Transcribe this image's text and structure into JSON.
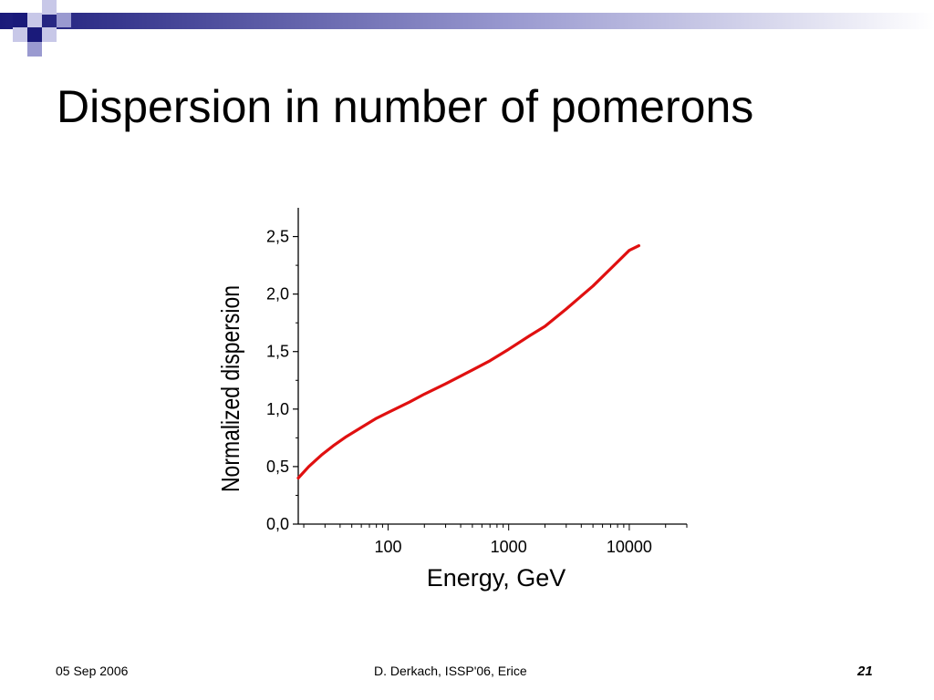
{
  "slide": {
    "title": "Dispersion in number of pomerons",
    "footer_date": "05 Sep 2006",
    "footer_center": "D. Derkach, ISSP'06, Erice",
    "page_number": "21"
  },
  "colors": {
    "curve": "#e01010",
    "accent_dark": "#1a1a7a",
    "accent_light": "#9a9ad0"
  },
  "chart_data": {
    "type": "line",
    "title": "",
    "xlabel": "Energy, GeV",
    "ylabel": "Normalized dispersion",
    "x_scale": "log",
    "xlim": [
      18,
      30000
    ],
    "ylim": [
      0,
      2.75
    ],
    "x_ticks": [
      {
        "value": 100,
        "label": "100"
      },
      {
        "value": 1000,
        "label": "1000"
      },
      {
        "value": 10000,
        "label": "10000"
      }
    ],
    "y_ticks": [
      {
        "value": 0,
        "label": "0,0"
      },
      {
        "value": 0.5,
        "label": "0,5"
      },
      {
        "value": 1.0,
        "label": "1,0"
      },
      {
        "value": 1.5,
        "label": "1,5"
      },
      {
        "value": 2.0,
        "label": "2,0"
      },
      {
        "value": 2.5,
        "label": "2,5"
      }
    ],
    "grid": false,
    "series": [
      {
        "x": [
          18,
          22,
          28,
          35,
          45,
          60,
          80,
          100,
          150,
          200,
          300,
          500,
          700,
          1000,
          1500,
          2000,
          3000,
          5000,
          7000,
          10000,
          12000
        ],
        "y": [
          0.4,
          0.5,
          0.6,
          0.68,
          0.76,
          0.84,
          0.92,
          0.97,
          1.06,
          1.13,
          1.22,
          1.34,
          1.42,
          1.52,
          1.64,
          1.72,
          1.87,
          2.07,
          2.22,
          2.38,
          2.42
        ]
      }
    ]
  }
}
